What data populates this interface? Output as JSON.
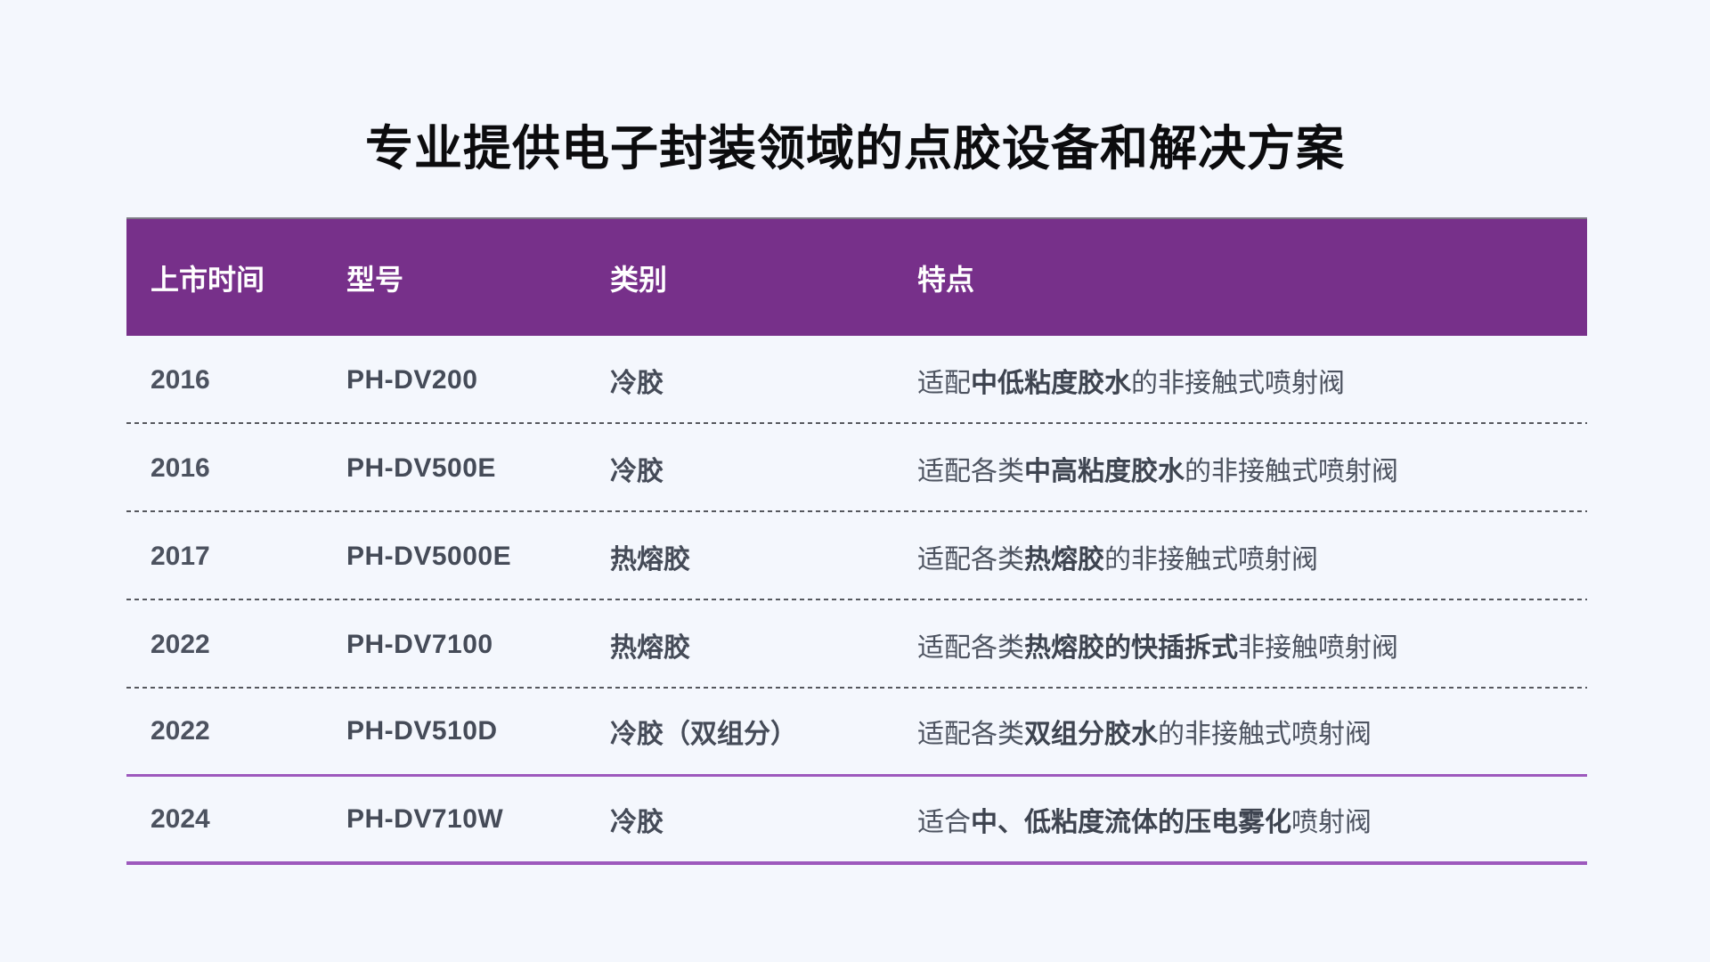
{
  "page": {
    "title": "专业提供电子封装领域的点胶设备和解决方案"
  },
  "colors": {
    "page_background": "#f4f7fd",
    "header_background": "#77308a",
    "header_text": "#ffffff",
    "body_text": "#4d5360",
    "bold_text": "#3e4450",
    "dashed_divider": "#56585e",
    "purple_divider": "#9d59bd",
    "title_text": "#0c0c0e"
  },
  "table": {
    "columns": [
      {
        "label": "上市时间"
      },
      {
        "label": "型号"
      },
      {
        "label": "类别"
      },
      {
        "label": "特点"
      }
    ],
    "rows": [
      {
        "year": "2016",
        "model": "PH-DV200",
        "category": "冷胶",
        "feature": [
          {
            "text": "适配",
            "bold": false
          },
          {
            "text": "中低粘度胶水",
            "bold": true
          },
          {
            "text": "的非接触式喷射阀",
            "bold": false
          }
        ]
      },
      {
        "year": "2016",
        "model": "PH-DV500E",
        "category": "冷胶",
        "feature": [
          {
            "text": "适配各类",
            "bold": false
          },
          {
            "text": "中高粘度胶水",
            "bold": true
          },
          {
            "text": "的非接触式喷射阀",
            "bold": false
          }
        ]
      },
      {
        "year": "2017",
        "model": "PH-DV5000E",
        "category": "热熔胶",
        "feature": [
          {
            "text": "适配各类",
            "bold": false
          },
          {
            "text": "热熔胶",
            "bold": true
          },
          {
            "text": "的非接触式喷射阀",
            "bold": false
          }
        ]
      },
      {
        "year": "2022",
        "model": "PH-DV7100",
        "category": "热熔胶",
        "feature": [
          {
            "text": "适配各类",
            "bold": false
          },
          {
            "text": "热熔胶的快插拆式",
            "bold": true
          },
          {
            "text": "非接触喷射阀",
            "bold": false
          }
        ]
      },
      {
        "year": "2022",
        "model": "PH-DV510D",
        "category": "冷胶（双组分）",
        "feature": [
          {
            "text": "适配各类",
            "bold": false
          },
          {
            "text": "双组分胶水",
            "bold": true
          },
          {
            "text": "的非接触式喷射阀",
            "bold": false
          }
        ]
      },
      {
        "year": "2024",
        "model": "PH-DV710W",
        "category": "冷胶",
        "feature": [
          {
            "text": "适合",
            "bold": false
          },
          {
            "text": "中、低粘度流体的压电雾化",
            "bold": true
          },
          {
            "text": "喷射阀",
            "bold": false
          }
        ]
      }
    ]
  }
}
